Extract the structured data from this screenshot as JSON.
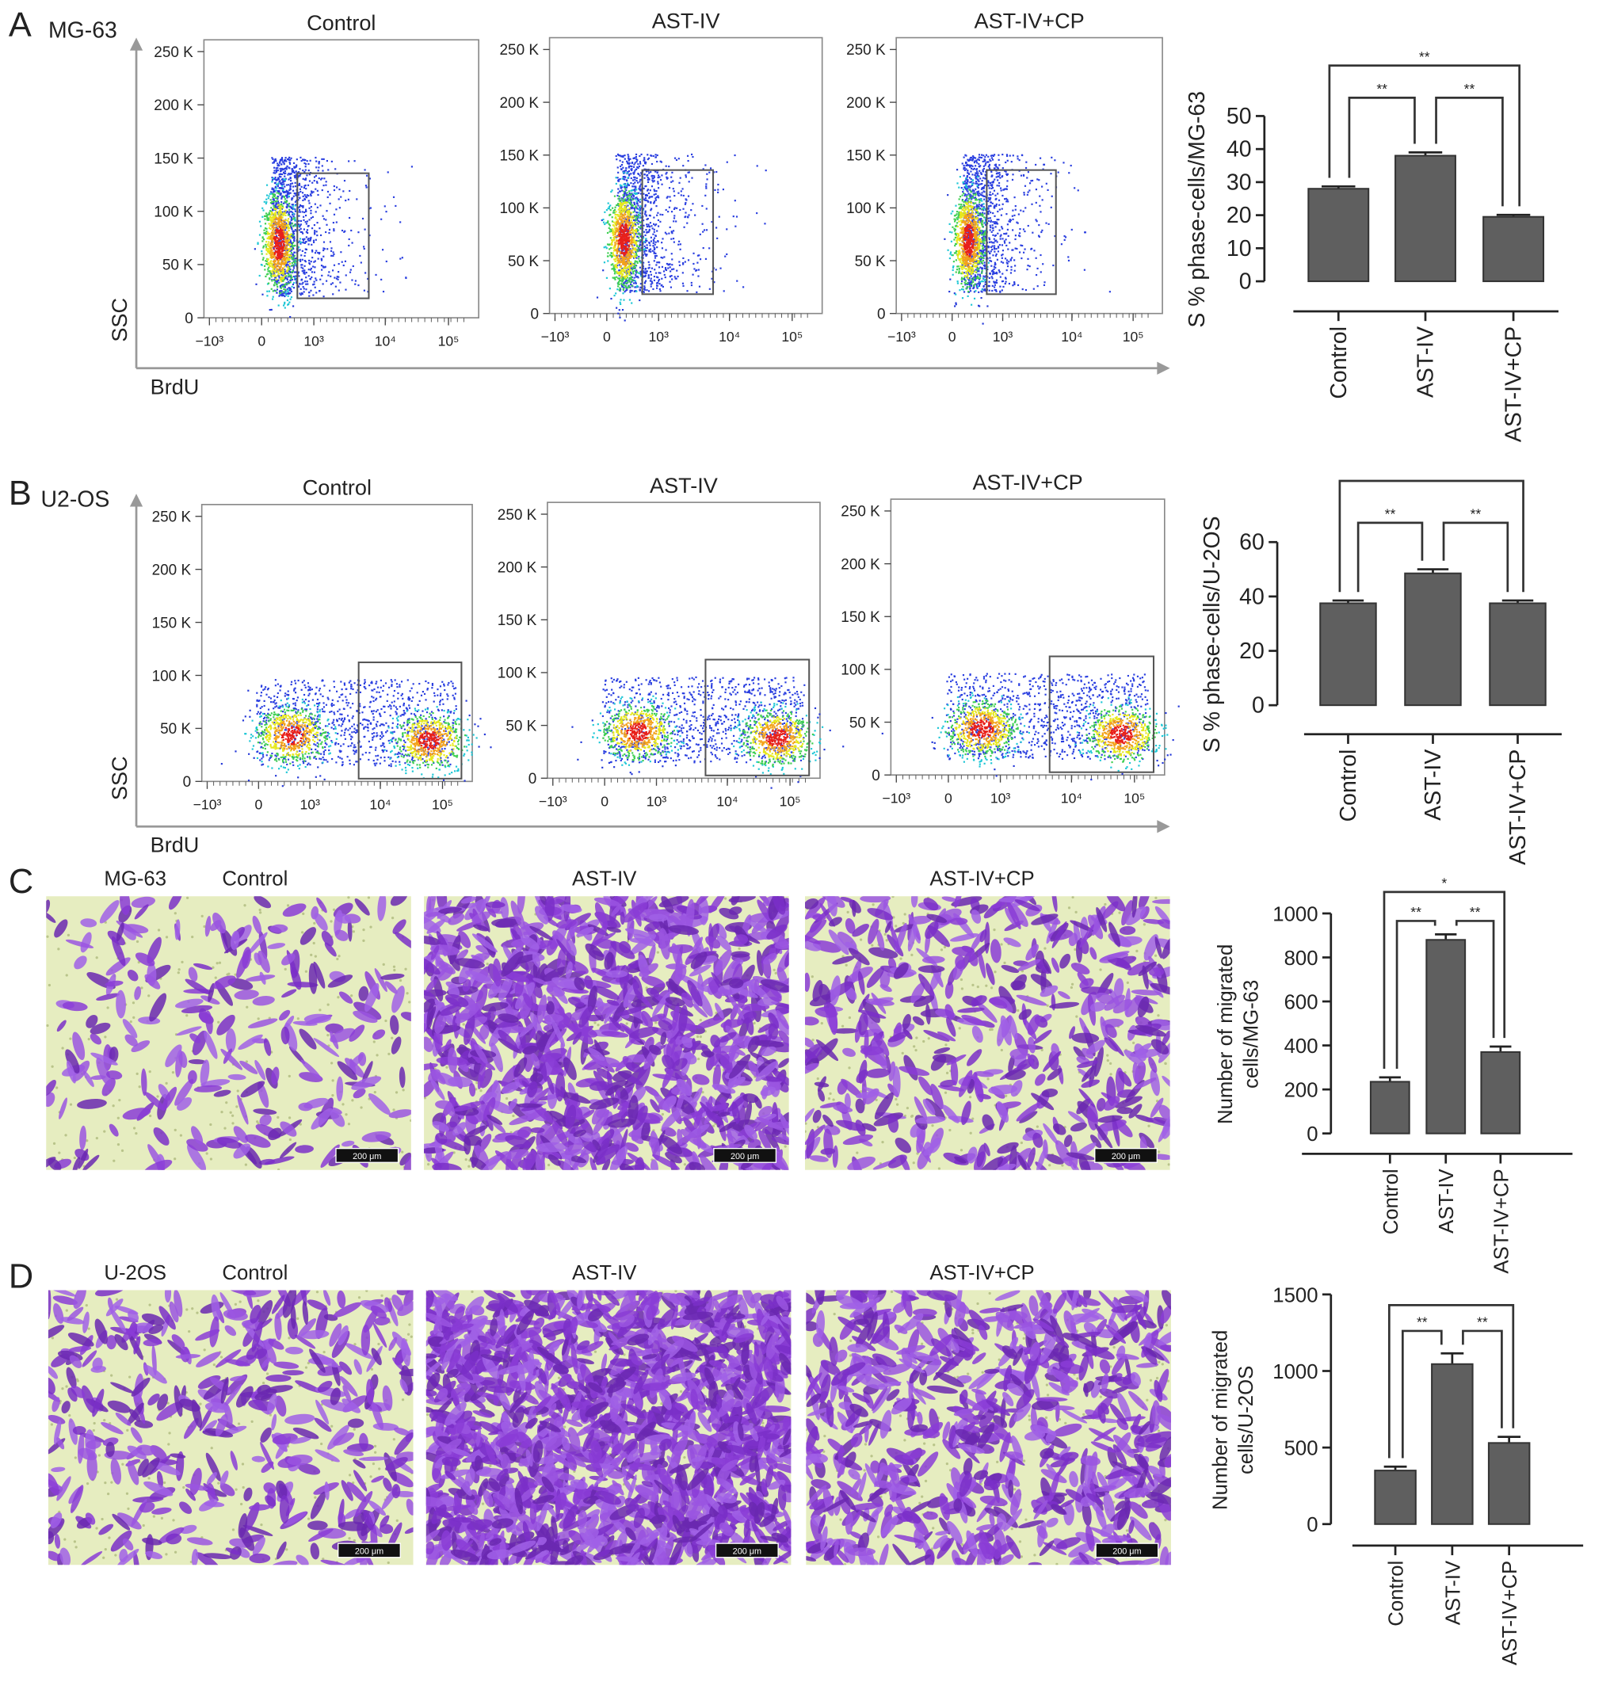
{
  "panels": {
    "A": {
      "letter": "A",
      "cell_line": "MG-63",
      "titles": [
        "Control",
        "AST-IV",
        "AST-IV+CP"
      ],
      "y_axis_label": "SSC",
      "x_axis_label": "BrdU"
    },
    "B": {
      "letter": "B",
      "cell_line": "U2-OS",
      "titles": [
        "Control",
        "AST-IV",
        "AST-IV+CP"
      ],
      "y_axis_label": "SSC",
      "x_axis_label": "BrdU"
    },
    "C": {
      "letter": "C",
      "cell_line": "MG-63",
      "titles": [
        "Control",
        "AST-IV",
        "AST-IV+CP"
      ],
      "scale_bar": "200 μm"
    },
    "D": {
      "letter": "D",
      "cell_line": "U-2OS",
      "titles": [
        "Control",
        "AST-IV",
        "AST-IV+CP"
      ],
      "scale_bar": "200 μm"
    }
  },
  "flow_axes": {
    "y_ticks": [
      "0",
      "50 K",
      "100 K",
      "150 K",
      "200 K",
      "250 K"
    ],
    "x_ticks": [
      "−10³",
      "0",
      "10³",
      "10⁴",
      "10⁵"
    ]
  },
  "colors": {
    "bar": "#5f5f5f",
    "stain": "#8a3cd6",
    "membrane": "#e6edc0"
  },
  "chart_data": [
    {
      "type": "bar",
      "panel": "A",
      "categories": [
        "Control",
        "AST-IV",
        "AST-IV+CP"
      ],
      "values": [
        28,
        38,
        19.5
      ],
      "errors": [
        0.7,
        1,
        0.6
      ],
      "ylabel": [
        "S % phase-cells/MG-63"
      ],
      "ylim": [
        0,
        50
      ],
      "yticks": [
        "0",
        "10",
        "20",
        "30",
        "40",
        "50"
      ],
      "significance": [
        {
          "pair": [
            0,
            2
          ],
          "label": "**"
        },
        {
          "pair": [
            0,
            1
          ],
          "label": "**"
        },
        {
          "pair": [
            1,
            2
          ],
          "label": "**"
        }
      ]
    },
    {
      "type": "bar",
      "panel": "B",
      "categories": [
        "Control",
        "AST-IV",
        "AST-IV+CP"
      ],
      "values": [
        37.5,
        48.5,
        37.5
      ],
      "errors": [
        1,
        1.5,
        1
      ],
      "ylabel": [
        "S % phase-cells/U-2OS"
      ],
      "ylim": [
        0,
        60
      ],
      "yticks": [
        "0",
        "20",
        "40",
        "60"
      ],
      "significance": [
        {
          "pair": [
            0,
            2
          ],
          "label": ""
        },
        {
          "pair": [
            0,
            1
          ],
          "label": "**"
        },
        {
          "pair": [
            1,
            2
          ],
          "label": "**"
        }
      ]
    },
    {
      "type": "bar",
      "panel": "C",
      "categories": [
        "Control",
        "AST-IV",
        "AST-IV+CP"
      ],
      "values": [
        235,
        880,
        370
      ],
      "errors": [
        20,
        25,
        25
      ],
      "ylabel": [
        "Number of migrated",
        "cells/MG-63"
      ],
      "ylim": [
        0,
        1000
      ],
      "yticks": [
        "0",
        "200",
        "400",
        "600",
        "800",
        "1000"
      ],
      "significance": [
        {
          "pair": [
            0,
            2
          ],
          "label": "*"
        },
        {
          "pair": [
            0,
            1
          ],
          "label": "**"
        },
        {
          "pair": [
            1,
            2
          ],
          "label": "**"
        }
      ]
    },
    {
      "type": "bar",
      "panel": "D",
      "categories": [
        "Control",
        "AST-IV",
        "AST-IV+CP"
      ],
      "values": [
        350,
        1045,
        530
      ],
      "errors": [
        25,
        70,
        40
      ],
      "ylabel": [
        "Number of migrated",
        "cells/U-2OS"
      ],
      "ylim": [
        0,
        1500
      ],
      "yticks": [
        "0",
        "500",
        "1000",
        "1500"
      ],
      "significance": [
        {
          "pair": [
            0,
            2
          ],
          "label": ""
        },
        {
          "pair": [
            0,
            1
          ],
          "label": "**"
        },
        {
          "pair": [
            1,
            2
          ],
          "label": "**"
        }
      ]
    }
  ]
}
